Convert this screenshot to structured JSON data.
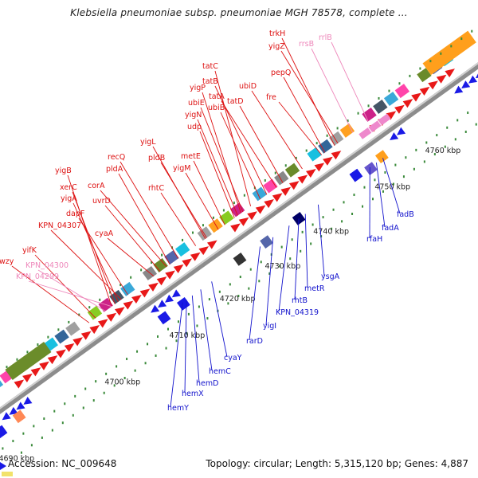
{
  "title": "Klebsiella pneumoniae subsp. pneumoniae MGH 78578, complete ...",
  "footer": {
    "accession": "Accession: NC_009648",
    "stats": "Topology: circular; Length: 5,315,120 bp; Genes: 4,887"
  },
  "colors": {
    "gene_red": "#e81818",
    "gene_blue": "#1a1ae6",
    "rna_pink": "#ee88cc",
    "label_red": "#dd1111",
    "label_blue": "#1111cc",
    "label_pink": "#ee88bb",
    "backbone": "#999999",
    "tick_green": "#3a8a3a"
  },
  "kbp_ticks": [
    {
      "label": "4690 kbp"
    },
    {
      "label": "4700 kbp"
    },
    {
      "label": "4710 kbp"
    },
    {
      "label": "4720 kbp"
    },
    {
      "label": "4730 kbp"
    },
    {
      "label": "4740 kbp"
    },
    {
      "label": "4750 kbp"
    },
    {
      "label": "4760 kbp"
    }
  ],
  "top_labels": [
    {
      "text": "trkH",
      "color": "red"
    },
    {
      "text": "rrsB",
      "color": "pink"
    },
    {
      "text": "rrlB",
      "color": "pink"
    },
    {
      "text": "yigZ",
      "color": "red"
    },
    {
      "text": "tatC",
      "color": "red"
    },
    {
      "text": "pepQ",
      "color": "red"
    },
    {
      "text": "tatB",
      "color": "red"
    },
    {
      "text": "ubiD",
      "color": "red"
    },
    {
      "text": "yigP",
      "color": "red"
    },
    {
      "text": "tatA",
      "color": "red"
    },
    {
      "text": "fre",
      "color": "red"
    },
    {
      "text": "ubiE",
      "color": "red"
    },
    {
      "text": "tatD",
      "color": "red"
    },
    {
      "text": "ubiB",
      "color": "red"
    },
    {
      "text": "yigN",
      "color": "red"
    },
    {
      "text": "udp",
      "color": "red"
    },
    {
      "text": "yigL",
      "color": "red"
    },
    {
      "text": "recQ",
      "color": "red"
    },
    {
      "text": "pldB",
      "color": "red"
    },
    {
      "text": "metE",
      "color": "red"
    },
    {
      "text": "pldA",
      "color": "red"
    },
    {
      "text": "yigM",
      "color": "red"
    },
    {
      "text": "yigB",
      "color": "red"
    },
    {
      "text": "corA",
      "color": "red"
    },
    {
      "text": "rhtC",
      "color": "red"
    },
    {
      "text": "xerC",
      "color": "red"
    },
    {
      "text": "yigA",
      "color": "red"
    },
    {
      "text": "uvrD",
      "color": "red"
    },
    {
      "text": "dapF",
      "color": "red"
    },
    {
      "text": "KPN_04307",
      "color": "red"
    },
    {
      "text": "cyaA",
      "color": "red"
    },
    {
      "text": "yifK",
      "color": "red"
    },
    {
      "text": "wzy",
      "color": "red"
    },
    {
      "text": "KPN_04300",
      "color": "pink"
    },
    {
      "text": "KPN_04299",
      "color": "pink"
    }
  ],
  "bottom_labels": [
    {
      "text": "fadB"
    },
    {
      "text": "fadA"
    },
    {
      "text": "rfaH"
    },
    {
      "text": "ysgA"
    },
    {
      "text": "metR"
    },
    {
      "text": "rhtB"
    },
    {
      "text": "KPN_04319"
    },
    {
      "text": "yigI"
    },
    {
      "text": "rarD"
    },
    {
      "text": "cyaY"
    },
    {
      "text": "hemC"
    },
    {
      "text": "hemD"
    },
    {
      "text": "hemX"
    },
    {
      "text": "hemY"
    }
  ]
}
